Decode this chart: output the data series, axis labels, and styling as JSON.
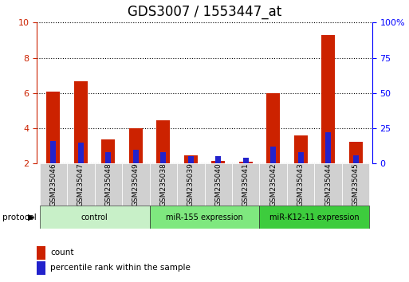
{
  "title": "GDS3007 / 1553447_at",
  "samples": [
    "GSM235046",
    "GSM235047",
    "GSM235048",
    "GSM235049",
    "GSM235038",
    "GSM235039",
    "GSM235040",
    "GSM235041",
    "GSM235042",
    "GSM235043",
    "GSM235044",
    "GSM235045"
  ],
  "count_values": [
    6.1,
    6.65,
    3.35,
    4.0,
    4.45,
    2.45,
    2.15,
    2.1,
    6.0,
    3.6,
    9.3,
    3.25
  ],
  "percentile_values": [
    16,
    15,
    8,
    10,
    8,
    5,
    5,
    4,
    12,
    8,
    22,
    6
  ],
  "groups": [
    {
      "label": "control",
      "start": 0,
      "end": 4,
      "color": "#c8f0c8"
    },
    {
      "label": "miR-155 expression",
      "start": 4,
      "end": 8,
      "color": "#7fe87f"
    },
    {
      "label": "miR-K12-11 expression",
      "start": 8,
      "end": 12,
      "color": "#3dcc3d"
    }
  ],
  "ylim_left": [
    2,
    10
  ],
  "ylim_right": [
    0,
    100
  ],
  "yticks_left": [
    2,
    4,
    6,
    8,
    10
  ],
  "yticks_right": [
    0,
    25,
    50,
    75,
    100
  ],
  "bar_color_red": "#cc2200",
  "bar_color_blue": "#2222cc",
  "bar_width": 0.5,
  "background_color": "#ffffff",
  "plot_bg_color": "#ffffff",
  "grid_color": "#000000",
  "title_fontsize": 12,
  "tick_fontsize": 8,
  "label_fontsize": 8
}
